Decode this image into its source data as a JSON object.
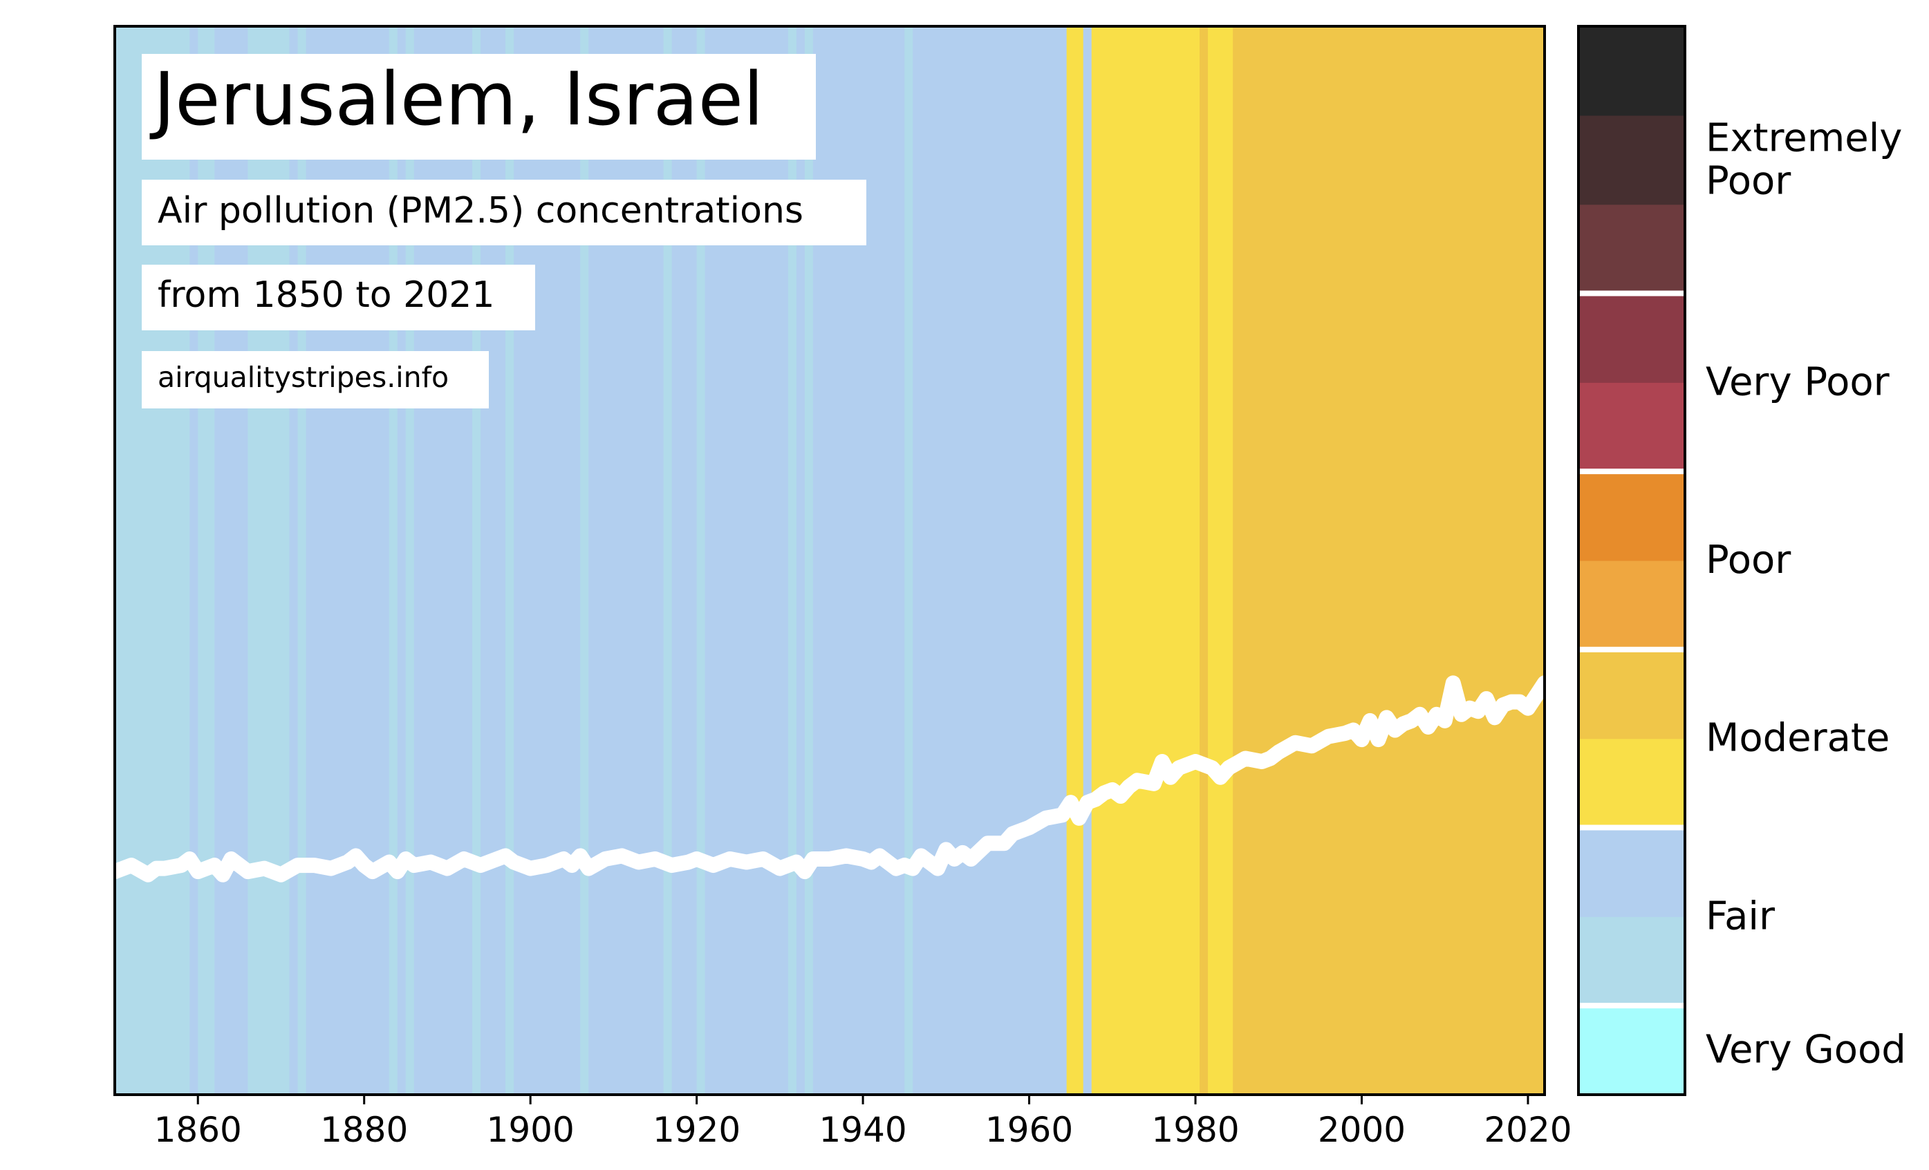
{
  "chart_data": {
    "type": "stripes",
    "title": "Jerusalem, Israel",
    "subtitle_lines": [
      "Air pollution (PM2.5) concentrations",
      "from 1850 to 2021"
    ],
    "source": "airqualitystripes.info",
    "xlim": [
      1850,
      2022
    ],
    "x_ticks": [
      1860,
      1880,
      1900,
      1920,
      1940,
      1960,
      1980,
      2000,
      2020
    ],
    "colors": {
      "very_good": "#a6fdfd",
      "fair_light": "#b1dbea",
      "fair_dark": "#b2cfef",
      "moderate_light": "#f9df48",
      "moderate_dark": "#f0c649",
      "poor_light": "#efa740",
      "poor_dark": "#e78c2b",
      "very_poor_light": "#ae4452",
      "very_poor_dark": "#8b3a46",
      "ext_poor_light": "#6d3b3e",
      "ext_poor_mid": "#462f30",
      "ext_poor_dark": "#272727",
      "trend_line": "#ffffff"
    },
    "stripes": [
      {
        "from": 1850,
        "to": 1859,
        "band": "fair_light"
      },
      {
        "from": 1859,
        "to": 1860,
        "band": "fair_dark"
      },
      {
        "from": 1860,
        "to": 1862,
        "band": "fair_light"
      },
      {
        "from": 1862,
        "to": 1863,
        "band": "fair_dark"
      },
      {
        "from": 1863,
        "to": 1866,
        "band": "fair_dark"
      },
      {
        "from": 1866,
        "to": 1871,
        "band": "fair_light"
      },
      {
        "from": 1871,
        "to": 1872,
        "band": "fair_dark"
      },
      {
        "from": 1872,
        "to": 1873,
        "band": "fair_light"
      },
      {
        "from": 1873,
        "to": 1880,
        "band": "fair_dark"
      },
      {
        "from": 1880,
        "to": 1881,
        "band": "fair_dark"
      },
      {
        "from": 1881,
        "to": 1883,
        "band": "fair_dark"
      },
      {
        "from": 1883,
        "to": 1884,
        "band": "fair_light"
      },
      {
        "from": 1884,
        "to": 1885,
        "band": "fair_dark"
      },
      {
        "from": 1885,
        "to": 1886,
        "band": "fair_light"
      },
      {
        "from": 1886,
        "to": 1893,
        "band": "fair_dark"
      },
      {
        "from": 1893,
        "to": 1894,
        "band": "fair_light"
      },
      {
        "from": 1894,
        "to": 1897,
        "band": "fair_dark"
      },
      {
        "from": 1897,
        "to": 1898,
        "band": "fair_light"
      },
      {
        "from": 1898,
        "to": 1906,
        "band": "fair_dark"
      },
      {
        "from": 1906,
        "to": 1907,
        "band": "fair_light"
      },
      {
        "from": 1907,
        "to": 1916,
        "band": "fair_dark"
      },
      {
        "from": 1916,
        "to": 1917,
        "band": "fair_light"
      },
      {
        "from": 1917,
        "to": 1920,
        "band": "fair_dark"
      },
      {
        "from": 1920,
        "to": 1921,
        "band": "fair_light"
      },
      {
        "from": 1921,
        "to": 1931,
        "band": "fair_dark"
      },
      {
        "from": 1931,
        "to": 1932,
        "band": "fair_light"
      },
      {
        "from": 1932,
        "to": 1933,
        "band": "fair_dark"
      },
      {
        "from": 1933,
        "to": 1934,
        "band": "fair_light"
      },
      {
        "from": 1934,
        "to": 1945,
        "band": "fair_dark"
      },
      {
        "from": 1945,
        "to": 1946,
        "band": "fair_light"
      },
      {
        "from": 1946,
        "to": 1964.5,
        "band": "fair_dark"
      },
      {
        "from": 1964.5,
        "to": 1966.5,
        "band": "moderate_light"
      },
      {
        "from": 1966.5,
        "to": 1967.5,
        "band": "fair_dark"
      },
      {
        "from": 1967.5,
        "to": 1980.5,
        "band": "moderate_light"
      },
      {
        "from": 1980.5,
        "to": 1981.5,
        "band": "moderate_dark"
      },
      {
        "from": 1981.5,
        "to": 1984.5,
        "band": "moderate_light"
      },
      {
        "from": 1984.5,
        "to": 2022,
        "band": "moderate_dark"
      }
    ],
    "trend": {
      "x": [
        1850,
        1852,
        1854,
        1855,
        1856,
        1858,
        1859,
        1860,
        1862,
        1863,
        1864,
        1866,
        1868,
        1870,
        1872,
        1874,
        1876,
        1878,
        1879,
        1880,
        1881,
        1883,
        1884,
        1885,
        1886,
        1888,
        1890,
        1892,
        1894,
        1896,
        1897,
        1898,
        1900,
        1902,
        1904,
        1905,
        1906,
        1907,
        1909,
        1911,
        1913,
        1915,
        1917,
        1919,
        1920,
        1922,
        1924,
        1926,
        1928,
        1930,
        1932,
        1933,
        1934,
        1936,
        1938,
        1940,
        1941,
        1942,
        1944,
        1945,
        1946,
        1947,
        1949,
        1950,
        1951,
        1952,
        1953,
        1955,
        1957,
        1958,
        1960,
        1962,
        1964,
        1965,
        1966,
        1967,
        1968,
        1969,
        1970,
        1971,
        1972,
        1973,
        1975,
        1976,
        1977,
        1978,
        1979,
        1980,
        1981,
        1982,
        1983,
        1984,
        1986,
        1988,
        1989,
        1990,
        1992,
        1994,
        1996,
        1998,
        1999,
        2000,
        2001,
        2002,
        2003,
        2004,
        2005,
        2006,
        2007,
        2008,
        2009,
        2010,
        2011,
        2012,
        2013,
        2014,
        2015,
        2016,
        2017,
        2018,
        2019,
        2020,
        2021,
        2022
      ],
      "y": [
        7.1,
        7.3,
        7.0,
        7.2,
        7.2,
        7.3,
        7.5,
        7.1,
        7.3,
        7.0,
        7.5,
        7.1,
        7.2,
        7.0,
        7.3,
        7.3,
        7.2,
        7.4,
        7.6,
        7.3,
        7.1,
        7.4,
        7.1,
        7.5,
        7.3,
        7.4,
        7.2,
        7.5,
        7.3,
        7.5,
        7.6,
        7.4,
        7.2,
        7.3,
        7.5,
        7.3,
        7.6,
        7.2,
        7.5,
        7.6,
        7.4,
        7.5,
        7.3,
        7.4,
        7.5,
        7.3,
        7.5,
        7.4,
        7.5,
        7.2,
        7.4,
        7.1,
        7.5,
        7.5,
        7.6,
        7.5,
        7.4,
        7.6,
        7.2,
        7.3,
        7.2,
        7.6,
        7.2,
        7.8,
        7.5,
        7.7,
        7.5,
        8.0,
        8.0,
        8.3,
        8.5,
        8.8,
        8.9,
        9.3,
        8.8,
        9.3,
        9.4,
        9.6,
        9.7,
        9.5,
        9.8,
        10.0,
        9.9,
        10.6,
        10.1,
        10.4,
        10.5,
        10.6,
        10.5,
        10.4,
        10.1,
        10.4,
        10.7,
        10.6,
        10.7,
        10.9,
        11.2,
        11.1,
        11.4,
        11.5,
        11.6,
        11.3,
        11.9,
        11.3,
        12.0,
        11.6,
        11.8,
        11.9,
        12.1,
        11.7,
        12.1,
        11.9,
        13.1,
        12.1,
        12.3,
        12.2,
        12.6,
        12.0,
        12.4,
        12.5,
        12.5,
        12.3,
        12.7,
        13.1
      ],
      "ylim": [
        0,
        34
      ]
    },
    "legend": {
      "bands": [
        {
          "key": "very_good",
          "n": 1
        },
        {
          "key": "fair_light",
          "n": 1
        },
        {
          "key": "fair_dark",
          "n": 1
        },
        {
          "key": "moderate_light",
          "n": 1
        },
        {
          "key": "moderate_dark",
          "n": 1
        },
        {
          "key": "poor_light",
          "n": 1
        },
        {
          "key": "poor_dark",
          "n": 1
        },
        {
          "key": "very_poor_light",
          "n": 1
        },
        {
          "key": "very_poor_dark",
          "n": 1
        },
        {
          "key": "ext_poor_light",
          "n": 1
        },
        {
          "key": "ext_poor_mid",
          "n": 1
        },
        {
          "key": "ext_poor_dark",
          "n": 1
        }
      ],
      "separators_after": [
        1,
        3,
        5,
        7,
        9
      ],
      "labels": [
        {
          "lines": [
            "Very Good"
          ],
          "at": 0.5
        },
        {
          "lines": [
            "Fair"
          ],
          "at": 2.0
        },
        {
          "lines": [
            "Moderate"
          ],
          "at": 4.0
        },
        {
          "lines": [
            "Poor"
          ],
          "at": 6.0
        },
        {
          "lines": [
            "Very Poor"
          ],
          "at": 8.0
        },
        {
          "lines": [
            "Extremely",
            "Poor"
          ],
          "at": 10.5
        }
      ]
    }
  }
}
